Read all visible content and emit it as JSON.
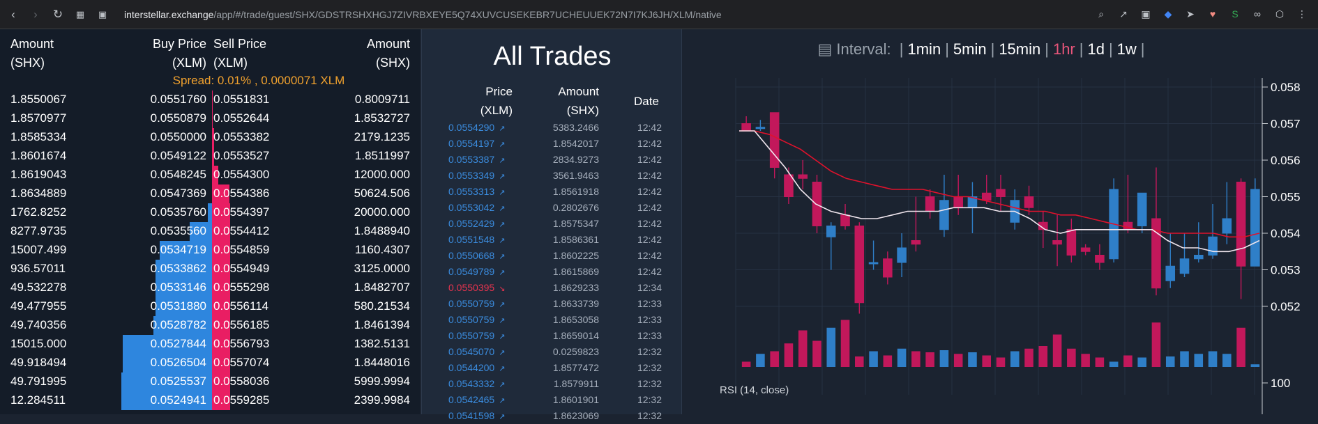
{
  "browser": {
    "url_host": "interstellar.exchange",
    "url_path": "/app/#/trade/guest/SHX/GDSTRSHXHGJ7ZIVRBXEYE5Q74XUVCUSEKEBR7UCHEUUEK72N7I7KJ6JH/XLM/native"
  },
  "orderbook": {
    "headers": {
      "amount_left": [
        "Amount",
        "(SHX)"
      ],
      "buy_price": [
        "Buy Price",
        "(XLM)"
      ],
      "sell_price": [
        "Sell Price",
        "(XLM)"
      ],
      "amount_right": [
        "Amount",
        "(SHX)"
      ]
    },
    "spread": "Spread: 0.01% , 0.0000071 XLM",
    "rows": [
      {
        "buy_amount": "1.8550067",
        "buy_price": "0.0551760",
        "sell_price": "0.0551831",
        "sell_amount": "0.8009711",
        "buy_depth": 0,
        "sell_depth": 0
      },
      {
        "buy_amount": "1.8570977",
        "buy_price": "0.0550879",
        "sell_price": "0.0552644",
        "sell_amount": "1.8532727",
        "buy_depth": 0,
        "sell_depth": 0
      },
      {
        "buy_amount": "1.8585334",
        "buy_price": "0.0550000",
        "sell_price": "0.0553382",
        "sell_amount": "2179.1235",
        "buy_depth": 0,
        "sell_depth": 0.03
      },
      {
        "buy_amount": "1.8601674",
        "buy_price": "0.0549122",
        "sell_price": "0.0553527",
        "sell_amount": "1.8511997",
        "buy_depth": 0,
        "sell_depth": 0.03
      },
      {
        "buy_amount": "1.8619043",
        "buy_price": "0.0548245",
        "sell_price": "0.0554300",
        "sell_amount": "12000.000",
        "buy_depth": 0,
        "sell_depth": 0.19
      },
      {
        "buy_amount": "1.8634889",
        "buy_price": "0.0547369",
        "sell_price": "0.0554386",
        "sell_amount": "50624.506",
        "buy_depth": 0,
        "sell_depth": 0.78
      },
      {
        "buy_amount": "1762.8252",
        "buy_price": "0.0535760",
        "sell_price": "0.0554397",
        "sell_amount": "20000.000",
        "buy_depth": 0.02,
        "sell_depth": 1.0
      },
      {
        "buy_amount": "8277.9735",
        "buy_price": "0.0535560",
        "sell_price": "0.0554412",
        "sell_amount": "1.8488940",
        "buy_depth": 0.11,
        "sell_depth": 1.0
      },
      {
        "buy_amount": "15007.499",
        "buy_price": "0.0534719",
        "sell_price": "0.0554859",
        "sell_amount": "1160.4307",
        "buy_depth": 0.26,
        "sell_depth": 1.0
      },
      {
        "buy_amount": "936.57011",
        "buy_price": "0.0533862",
        "sell_price": "0.0554949",
        "sell_amount": "3125.0000",
        "buy_depth": 0.28,
        "sell_depth": 1.0
      },
      {
        "buy_amount": "49.532278",
        "buy_price": "0.0533146",
        "sell_price": "0.0555298",
        "sell_amount": "1.8482707",
        "buy_depth": 0.28,
        "sell_depth": 1.0
      },
      {
        "buy_amount": "49.477955",
        "buy_price": "0.0531880",
        "sell_price": "0.0556114",
        "sell_amount": "580.21534",
        "buy_depth": 0.28,
        "sell_depth": 1.0
      },
      {
        "buy_amount": "49.740356",
        "buy_price": "0.0528782",
        "sell_price": "0.0556185",
        "sell_amount": "1.8461394",
        "buy_depth": 0.29,
        "sell_depth": 1.0
      },
      {
        "buy_amount": "15015.000",
        "buy_price": "0.0527844",
        "sell_price": "0.0556793",
        "sell_amount": "1382.5131",
        "buy_depth": 0.44,
        "sell_depth": 1.0
      },
      {
        "buy_amount": "49.918494",
        "buy_price": "0.0526504",
        "sell_price": "0.0557074",
        "sell_amount": "1.8448016",
        "buy_depth": 0.44,
        "sell_depth": 1.0
      },
      {
        "buy_amount": "49.791995",
        "buy_price": "0.0525537",
        "sell_price": "0.0558036",
        "sell_amount": "5999.9994",
        "buy_depth": 0.45,
        "sell_depth": 1.0
      },
      {
        "buy_amount": "12.284511",
        "buy_price": "0.0524941",
        "sell_price": "0.0559285",
        "sell_amount": "2399.9984",
        "buy_depth": 0.45,
        "sell_depth": 1.0
      }
    ]
  },
  "trades": {
    "title": "All Trades",
    "headers": {
      "price": [
        "Price",
        "(XLM)"
      ],
      "amount": [
        "Amount",
        "(SHX)"
      ],
      "date": "Date"
    },
    "rows": [
      {
        "price": "0.0554290",
        "amount": "5383.2466",
        "date": "12:42",
        "dir": "up"
      },
      {
        "price": "0.0554197",
        "amount": "1.8542017",
        "date": "12:42",
        "dir": "up"
      },
      {
        "price": "0.0553387",
        "amount": "2834.9273",
        "date": "12:42",
        "dir": "up"
      },
      {
        "price": "0.0553349",
        "amount": "3561.9463",
        "date": "12:42",
        "dir": "up"
      },
      {
        "price": "0.0553313",
        "amount": "1.8561918",
        "date": "12:42",
        "dir": "up"
      },
      {
        "price": "0.0553042",
        "amount": "0.2802676",
        "date": "12:42",
        "dir": "up"
      },
      {
        "price": "0.0552429",
        "amount": "1.8575347",
        "date": "12:42",
        "dir": "up"
      },
      {
        "price": "0.0551548",
        "amount": "1.8586361",
        "date": "12:42",
        "dir": "up"
      },
      {
        "price": "0.0550668",
        "amount": "1.8602225",
        "date": "12:42",
        "dir": "up"
      },
      {
        "price": "0.0549789",
        "amount": "1.8615869",
        "date": "12:42",
        "dir": "up"
      },
      {
        "price": "0.0550395",
        "amount": "1.8629233",
        "date": "12:34",
        "dir": "down"
      },
      {
        "price": "0.0550759",
        "amount": "1.8633739",
        "date": "12:33",
        "dir": "up"
      },
      {
        "price": "0.0550759",
        "amount": "1.8653058",
        "date": "12:33",
        "dir": "up"
      },
      {
        "price": "0.0550759",
        "amount": "1.8659014",
        "date": "12:33",
        "dir": "up"
      },
      {
        "price": "0.0545070",
        "amount": "0.0259823",
        "date": "12:32",
        "dir": "up"
      },
      {
        "price": "0.0544200",
        "amount": "1.8577472",
        "date": "12:32",
        "dir": "up"
      },
      {
        "price": "0.0543332",
        "amount": "1.8579911",
        "date": "12:32",
        "dir": "up"
      },
      {
        "price": "0.0542465",
        "amount": "1.8601901",
        "date": "12:32",
        "dir": "up"
      },
      {
        "price": "0.0541598",
        "amount": "1.8623069",
        "date": "12:32",
        "dir": "up"
      }
    ]
  },
  "chart": {
    "interval_label": "Interval:",
    "intervals": [
      "1min",
      "5min",
      "15min",
      "1hr",
      "1d",
      "1w"
    ],
    "active_interval": "1hr",
    "rsi_label": "RSI (14, close)",
    "colors": {
      "up": "#2f7fc8",
      "down": "#c2185b",
      "ma_slow": "#e0122c",
      "ma_fast": "#f0e6ee"
    }
  },
  "chart_data": {
    "type": "candlestick",
    "y_ticks": [
      "0.058",
      "0.057",
      "0.056",
      "0.055",
      "0.054",
      "0.053",
      "0.052"
    ],
    "ylim": [
      0.0515,
      0.0582
    ],
    "rsi_tick": "100",
    "candles": [
      {
        "o": 0.057,
        "h": 0.0572,
        "l": 0.0568,
        "c": 0.0568,
        "v": 0.1
      },
      {
        "o": 0.0569,
        "h": 0.0571,
        "l": 0.0568,
        "c": 0.0569,
        "v": 0.25
      },
      {
        "o": 0.0573,
        "h": 0.0573,
        "l": 0.0555,
        "c": 0.0558,
        "v": 0.3
      },
      {
        "o": 0.0556,
        "h": 0.0558,
        "l": 0.0548,
        "c": 0.055,
        "v": 0.45
      },
      {
        "o": 0.0556,
        "h": 0.056,
        "l": 0.0552,
        "c": 0.0555,
        "v": 0.7
      },
      {
        "o": 0.0554,
        "h": 0.0556,
        "l": 0.054,
        "c": 0.0542,
        "v": 0.5
      },
      {
        "o": 0.0539,
        "h": 0.0543,
        "l": 0.053,
        "c": 0.0542,
        "v": 0.75
      },
      {
        "o": 0.0545,
        "h": 0.0548,
        "l": 0.0541,
        "c": 0.0542,
        "v": 0.9
      },
      {
        "o": 0.0542,
        "h": 0.0543,
        "l": 0.0518,
        "c": 0.0521,
        "v": 0.2
      },
      {
        "o": 0.0532,
        "h": 0.0538,
        "l": 0.053,
        "c": 0.0532,
        "v": 0.3
      },
      {
        "o": 0.0533,
        "h": 0.0535,
        "l": 0.0526,
        "c": 0.0528,
        "v": 0.22
      },
      {
        "o": 0.0532,
        "h": 0.054,
        "l": 0.0528,
        "c": 0.0536,
        "v": 0.35
      },
      {
        "o": 0.0538,
        "h": 0.055,
        "l": 0.0535,
        "c": 0.0537,
        "v": 0.3
      },
      {
        "o": 0.055,
        "h": 0.0552,
        "l": 0.0544,
        "c": 0.0546,
        "v": 0.28
      },
      {
        "o": 0.0541,
        "h": 0.0556,
        "l": 0.0539,
        "c": 0.0549,
        "v": 0.32
      },
      {
        "o": 0.055,
        "h": 0.0556,
        "l": 0.0545,
        "c": 0.0547,
        "v": 0.25
      },
      {
        "o": 0.0547,
        "h": 0.0554,
        "l": 0.054,
        "c": 0.055,
        "v": 0.28
      },
      {
        "o": 0.0551,
        "h": 0.0556,
        "l": 0.0548,
        "c": 0.0549,
        "v": 0.22
      },
      {
        "o": 0.0552,
        "h": 0.0556,
        "l": 0.0546,
        "c": 0.055,
        "v": 0.18
      },
      {
        "o": 0.0543,
        "h": 0.0552,
        "l": 0.0541,
        "c": 0.0549,
        "v": 0.3
      },
      {
        "o": 0.055,
        "h": 0.0553,
        "l": 0.0545,
        "c": 0.0547,
        "v": 0.35
      },
      {
        "o": 0.0543,
        "h": 0.0546,
        "l": 0.0536,
        "c": 0.0541,
        "v": 0.4
      },
      {
        "o": 0.0538,
        "h": 0.0545,
        "l": 0.0531,
        "c": 0.0537,
        "v": 0.62
      },
      {
        "o": 0.0541,
        "h": 0.0544,
        "l": 0.0532,
        "c": 0.0534,
        "v": 0.35
      },
      {
        "o": 0.0536,
        "h": 0.0537,
        "l": 0.0534,
        "c": 0.0535,
        "v": 0.25
      },
      {
        "o": 0.0534,
        "h": 0.0537,
        "l": 0.053,
        "c": 0.0532,
        "v": 0.18
      },
      {
        "o": 0.0533,
        "h": 0.0555,
        "l": 0.0532,
        "c": 0.0552,
        "v": 0.1
      },
      {
        "o": 0.0543,
        "h": 0.0556,
        "l": 0.054,
        "c": 0.0541,
        "v": 0.22
      },
      {
        "o": 0.0542,
        "h": 0.0551,
        "l": 0.054,
        "c": 0.0551,
        "v": 0.18
      },
      {
        "o": 0.0544,
        "h": 0.0558,
        "l": 0.0523,
        "c": 0.0525,
        "v": 0.85
      },
      {
        "o": 0.0527,
        "h": 0.054,
        "l": 0.0525,
        "c": 0.0531,
        "v": 0.2
      },
      {
        "o": 0.0529,
        "h": 0.054,
        "l": 0.0528,
        "c": 0.0533,
        "v": 0.3
      },
      {
        "o": 0.0533,
        "h": 0.0543,
        "l": 0.0532,
        "c": 0.0534,
        "v": 0.25
      },
      {
        "o": 0.0534,
        "h": 0.0548,
        "l": 0.0533,
        "c": 0.0539,
        "v": 0.3
      },
      {
        "o": 0.054,
        "h": 0.0554,
        "l": 0.0537,
        "c": 0.0544,
        "v": 0.25
      },
      {
        "o": 0.0554,
        "h": 0.0555,
        "l": 0.0522,
        "c": 0.0531,
        "v": 0.75
      },
      {
        "o": 0.0531,
        "h": 0.0555,
        "l": 0.0531,
        "c": 0.0552,
        "v": 0.05
      }
    ],
    "ma_fast": [
      0.0568,
      0.0568,
      0.0563,
      0.0558,
      0.0552,
      0.0548,
      0.0546,
      0.0545,
      0.0544,
      0.0544,
      0.0545,
      0.0546,
      0.0546,
      0.0546,
      0.0547,
      0.0547,
      0.0547,
      0.0546,
      0.0546,
      0.0544,
      0.0541,
      0.054,
      0.0541,
      0.0541,
      0.0541,
      0.0541,
      0.0541,
      0.0541,
      0.0538,
      0.0536,
      0.0536,
      0.0535,
      0.0535,
      0.0536,
      0.0538
    ],
    "ma_slow": [
      0.0568,
      0.0568,
      0.0567,
      0.0565,
      0.0563,
      0.056,
      0.0557,
      0.0555,
      0.0554,
      0.0553,
      0.0552,
      0.0552,
      0.0552,
      0.0551,
      0.055,
      0.055,
      0.0549,
      0.0548,
      0.0547,
      0.0546,
      0.0546,
      0.0545,
      0.0545,
      0.0544,
      0.0543,
      0.0542,
      0.0541,
      0.0541,
      0.054,
      0.054,
      0.054,
      0.054,
      0.0539,
      0.0539,
      0.054
    ]
  }
}
